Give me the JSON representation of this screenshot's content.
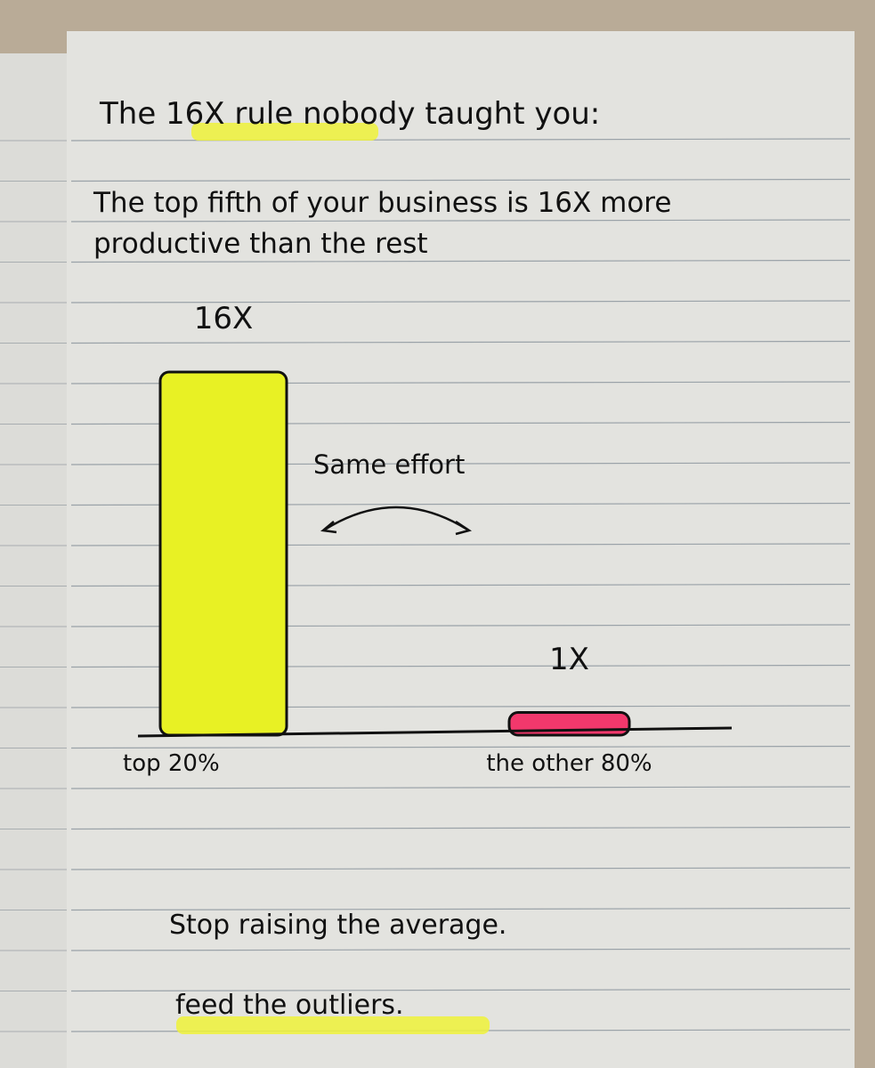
{
  "chart_data": {
    "type": "bar",
    "title": "The 16X rule nobody taught you:",
    "subtitle": "The top fifth of your business is 16X more productive than the rest",
    "categories": [
      "top 20%",
      "the other 80%"
    ],
    "values": [
      16,
      1
    ],
    "value_labels": [
      "16X",
      "1X"
    ],
    "colors": [
      "#e8f124",
      "#f2386c"
    ],
    "ylim": [
      0,
      16
    ],
    "annotations": [
      "Same effort",
      "Stop raising the average.",
      "feed the outliers."
    ]
  }
}
